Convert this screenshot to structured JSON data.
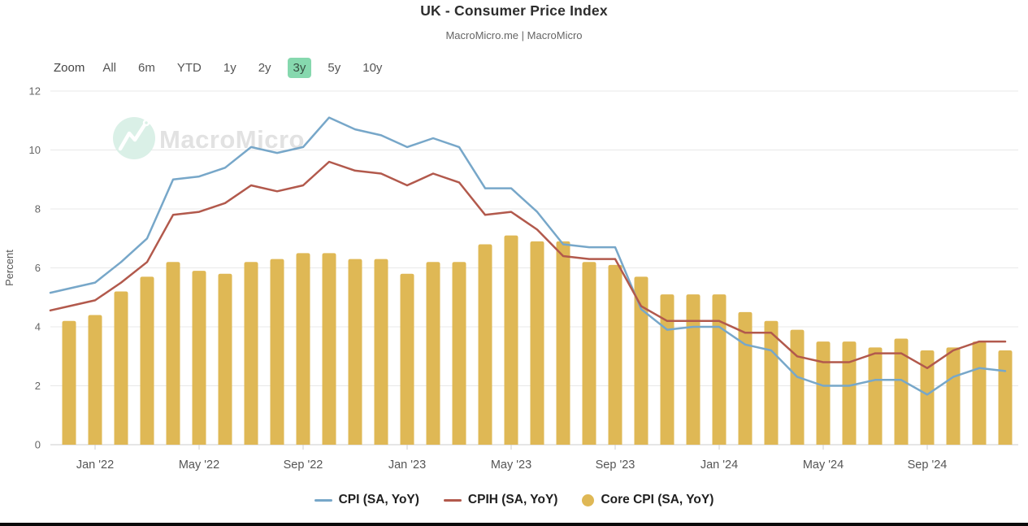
{
  "toolbar": {
    "zoom_label": "Zoom",
    "ranges": [
      "All",
      "6m",
      "YTD",
      "1y",
      "2y",
      "3y",
      "5y",
      "10y"
    ],
    "selected": "3y",
    "selected_bg": "#86d8ae"
  },
  "watermark": {
    "text": "MacroMicro"
  },
  "chart_data": {
    "type": "mixed",
    "title": "UK - Consumer Price Index",
    "subtitle": "MacroMicro.me | MacroMicro",
    "ylabel": "Percent",
    "xlabel": "",
    "ylim": [
      0,
      12
    ],
    "yticks": [
      0,
      2,
      4,
      6,
      8,
      10,
      12
    ],
    "grid": true,
    "legend_position": "bottom",
    "x": [
      "Dec '21",
      "Jan '22",
      "Feb '22",
      "Mar '22",
      "Apr '22",
      "May '22",
      "Jun '22",
      "Jul '22",
      "Aug '22",
      "Sep '22",
      "Oct '22",
      "Nov '22",
      "Dec '22",
      "Jan '23",
      "Feb '23",
      "Mar '23",
      "Apr '23",
      "May '23",
      "Jun '23",
      "Jul '23",
      "Aug '23",
      "Sep '23",
      "Oct '23",
      "Nov '23",
      "Dec '23",
      "Jan '24",
      "Feb '24",
      "Mar '24",
      "Apr '24",
      "May '24",
      "Jun '24",
      "Jul '24",
      "Aug '24",
      "Sep '24",
      "Oct '24",
      "Nov '24",
      "Dec '24"
    ],
    "xticks": [
      "Jan '22",
      "May '22",
      "Sep '22",
      "Jan '23",
      "May '23",
      "Sep '23",
      "Jan '24",
      "May '24",
      "Sep '24"
    ],
    "series": [
      {
        "name": "CPI (SA, YoY)",
        "type": "line",
        "color": "#77a7c9",
        "values": [
          5.3,
          5.5,
          6.2,
          7.0,
          9.0,
          9.1,
          9.4,
          10.1,
          9.9,
          10.1,
          11.1,
          10.7,
          10.5,
          10.1,
          10.4,
          10.1,
          8.7,
          8.7,
          7.9,
          6.8,
          6.7,
          6.7,
          4.6,
          3.9,
          4.0,
          4.0,
          3.4,
          3.2,
          2.3,
          2.0,
          2.0,
          2.2,
          2.2,
          1.7,
          2.3,
          2.6,
          2.5
        ]
      },
      {
        "name": "CPIH (SA, YoY)",
        "type": "line",
        "color": "#b2594c",
        "values": [
          4.7,
          4.9,
          5.5,
          6.2,
          7.8,
          7.9,
          8.2,
          8.8,
          8.6,
          8.8,
          9.6,
          9.3,
          9.2,
          8.8,
          9.2,
          8.9,
          7.8,
          7.9,
          7.3,
          6.4,
          6.3,
          6.3,
          4.7,
          4.2,
          4.2,
          4.2,
          3.8,
          3.8,
          3.0,
          2.8,
          2.8,
          3.1,
          3.1,
          2.6,
          3.2,
          3.5,
          3.5
        ]
      },
      {
        "name": "Core CPI (SA, YoY)",
        "type": "bar",
        "color": "#dfb855",
        "values": [
          4.2,
          4.4,
          5.2,
          5.7,
          6.2,
          5.9,
          5.8,
          6.2,
          6.3,
          6.5,
          6.5,
          6.3,
          6.3,
          5.8,
          6.2,
          6.2,
          6.8,
          7.1,
          6.9,
          6.9,
          6.2,
          6.1,
          5.7,
          5.1,
          5.1,
          5.1,
          4.5,
          4.2,
          3.9,
          3.5,
          3.5,
          3.3,
          3.6,
          3.2,
          3.3,
          3.5,
          3.2
        ]
      }
    ]
  }
}
